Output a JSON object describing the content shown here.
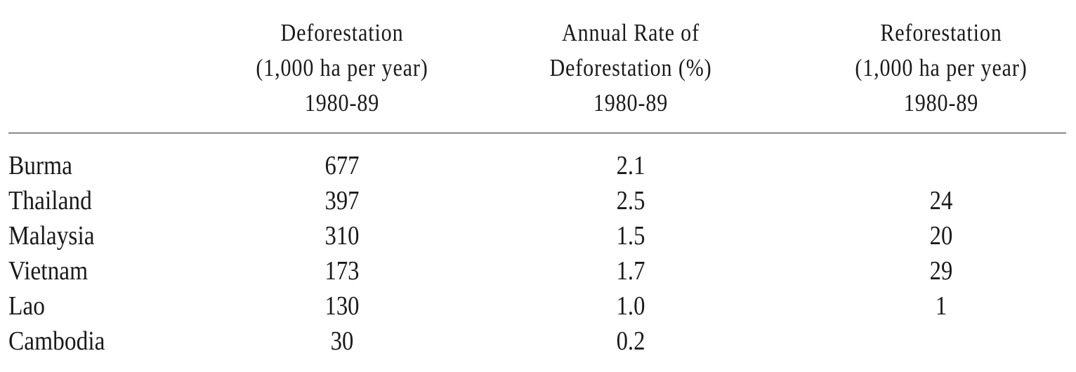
{
  "chart_data": {
    "type": "table",
    "columns": [
      [
        "Deforestation",
        "(1,000  ha  per  year)",
        "1980-89"
      ],
      [
        "Annual  Rate  of",
        "Deforestation  (%)",
        "1980-89"
      ],
      [
        "Reforestation",
        "(1,000  ha  per  year)",
        "1980-89"
      ]
    ],
    "rows": [
      {
        "label": "Burma",
        "values": [
          "677",
          "2.1",
          ""
        ]
      },
      {
        "label": "Thailand",
        "values": [
          "397",
          "2.5",
          "24"
        ]
      },
      {
        "label": "Malaysia",
        "values": [
          "310",
          "1.5",
          "20"
        ]
      },
      {
        "label": "Vietnam",
        "values": [
          "173",
          "1.7",
          "29"
        ]
      },
      {
        "label": "Lao",
        "values": [
          "130",
          "1.0",
          "1"
        ]
      },
      {
        "label": "Cambodia",
        "values": [
          "30",
          "0.2",
          ""
        ]
      }
    ]
  }
}
